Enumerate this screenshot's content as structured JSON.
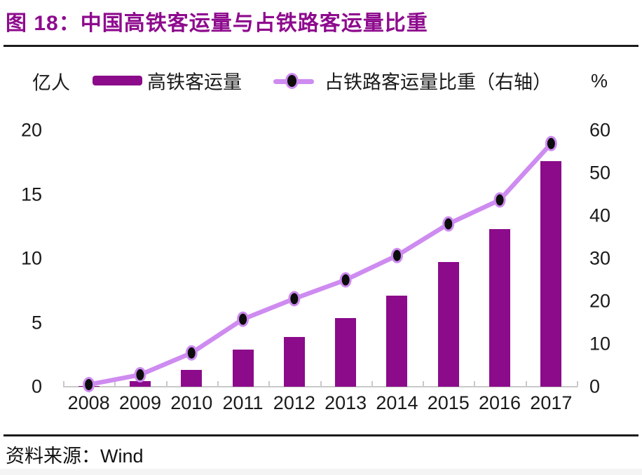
{
  "title": {
    "text": "图 18：中国高铁客运量与占铁路客运量比重"
  },
  "source": {
    "label": "资料来源：",
    "value": "Wind"
  },
  "colors": {
    "bar": "#8B0B8B",
    "line": "#CE8BF0",
    "marker": "#0D0D0D",
    "title": "#8E0A8E",
    "axis_line": "#C9C9C9",
    "text": "#1A1A1A",
    "rule": "#1B1B1B"
  },
  "chart_data": {
    "type": "bar+line combo",
    "title": "中国高铁客运量与占铁路客运量比重",
    "categories": [
      "2008",
      "2009",
      "2010",
      "2011",
      "2012",
      "2013",
      "2014",
      "2015",
      "2016",
      "2017"
    ],
    "series": [
      {
        "name": "高铁客运量",
        "type": "bar",
        "axis": "left",
        "values": [
          0.07,
          0.46,
          1.33,
          2.9,
          3.9,
          5.35,
          7.1,
          9.7,
          12.3,
          17.6
        ]
      },
      {
        "name": "占铁路客运量比重（右轴）",
        "type": "line",
        "axis": "right",
        "values": [
          0.5,
          2.8,
          7.9,
          15.8,
          20.6,
          25.0,
          30.7,
          38.1,
          43.7,
          56.9
        ]
      }
    ],
    "left_axis": {
      "label": "亿人",
      "min": 0,
      "max": 20,
      "ticks": [
        0,
        5,
        10,
        15,
        20
      ]
    },
    "right_axis": {
      "label": "%",
      "min": 0,
      "max": 60,
      "ticks": [
        0,
        10,
        20,
        30,
        40,
        50,
        60
      ]
    },
    "grid": false,
    "legend_position": "top"
  }
}
